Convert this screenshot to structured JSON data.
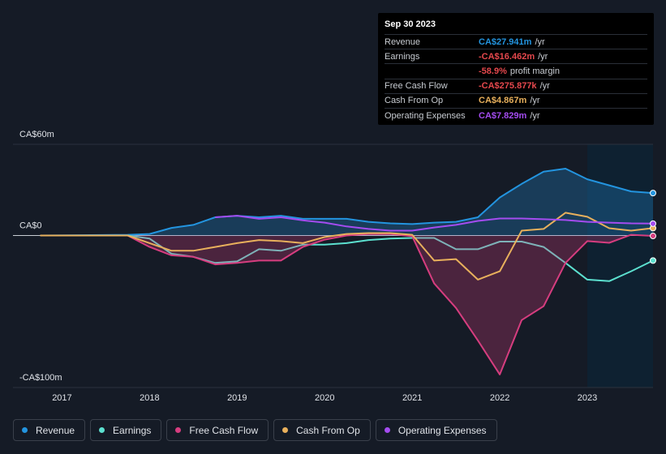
{
  "chart_data": {
    "type": "line",
    "x": [
      2016.75,
      2017.75,
      2018,
      2018.25,
      2018.5,
      2018.75,
      2019,
      2019.25,
      2019.5,
      2019.75,
      2020,
      2020.25,
      2020.5,
      2020.75,
      2021,
      2021.25,
      2021.5,
      2021.75,
      2022,
      2022.25,
      2022.5,
      2022.75,
      2023,
      2023.25,
      2023.5,
      2023.75
    ],
    "xlim": [
      2016.44,
      2023.75
    ],
    "xticks": [
      2017,
      2018,
      2019,
      2020,
      2021,
      2022,
      2023
    ],
    "ylim": [
      -100,
      60
    ],
    "yticks": [
      {
        "value": -100,
        "label": "-CA$100m"
      },
      {
        "value": 0,
        "label": "CA$0"
      },
      {
        "value": 60,
        "label": "CA$60m"
      }
    ],
    "grid": true,
    "legend": "bottom",
    "series": [
      {
        "name": "Revenue",
        "color": "#2394df",
        "fill": true,
        "values": [
          0,
          0.5,
          1,
          5,
          7,
          12,
          13,
          12,
          13,
          11,
          11,
          11,
          9,
          8,
          7.5,
          8.5,
          9,
          12,
          25,
          34,
          42,
          44,
          37,
          33,
          29,
          27.941
        ]
      },
      {
        "name": "Earnings",
        "color": "#5ce0cf",
        "fill": false,
        "values": [
          0,
          0,
          -2,
          -12,
          -14,
          -18,
          -17,
          -9,
          -10,
          -6,
          -6,
          -5,
          -3,
          -2,
          -1.6,
          -1.6,
          -9,
          -9,
          -4,
          -4,
          -7.5,
          -18,
          -29,
          -30,
          -23.5,
          -16.462
        ]
      },
      {
        "name": "Free Cash Flow",
        "color": "#d63d7f",
        "fill": true,
        "values": [
          0,
          0,
          -7.5,
          -13,
          -14,
          -19,
          -18,
          -16.5,
          -16.5,
          -7.5,
          -2.7,
          0,
          1,
          1,
          -0.5,
          -31.5,
          -47.6,
          -69,
          -91.4,
          -55.6,
          -46.5,
          -18,
          -3.7,
          -4.8,
          0.5,
          -0.276
        ]
      },
      {
        "name": "Cash From Op",
        "color": "#e8b05c",
        "fill": false,
        "values": [
          0,
          0,
          -5,
          -10,
          -10,
          -7.5,
          -5,
          -3,
          -3.7,
          -5,
          -1,
          1,
          1.6,
          1.6,
          0.5,
          -16.5,
          -15.5,
          -29,
          -23.5,
          3.2,
          4.3,
          15,
          12.3,
          4.8,
          3.2,
          4.867
        ]
      },
      {
        "name": "Operating Expenses",
        "color": "#a44cf0",
        "fill": false,
        "values": [
          null,
          null,
          null,
          null,
          null,
          12,
          13,
          11,
          12,
          10,
          8.5,
          6,
          4.3,
          3.2,
          3.2,
          5.3,
          7,
          9.6,
          11.2,
          11.2,
          10.7,
          10.2,
          9,
          8.5,
          8,
          7.829
        ]
      }
    ]
  },
  "tooltip": {
    "date": "Sep 30 2023",
    "rows": [
      {
        "label": "Revenue",
        "value": "CA$27.941m",
        "unit": "/yr",
        "color": "#2394df"
      },
      {
        "label": "Earnings",
        "value": "-CA$16.462m",
        "unit": "/yr",
        "color": "#e5484d"
      },
      {
        "label": null,
        "value": "-58.9%",
        "unit": "profit margin",
        "color": "#e5484d"
      },
      {
        "label": "Free Cash Flow",
        "value": "-CA$275.877k",
        "unit": "/yr",
        "color": "#e5484d"
      },
      {
        "label": "Cash From Op",
        "value": "CA$4.867m",
        "unit": "/yr",
        "color": "#e8b05c"
      },
      {
        "label": "Operating Expenses",
        "value": "CA$7.829m",
        "unit": "/yr",
        "color": "#a44cf0"
      }
    ]
  }
}
